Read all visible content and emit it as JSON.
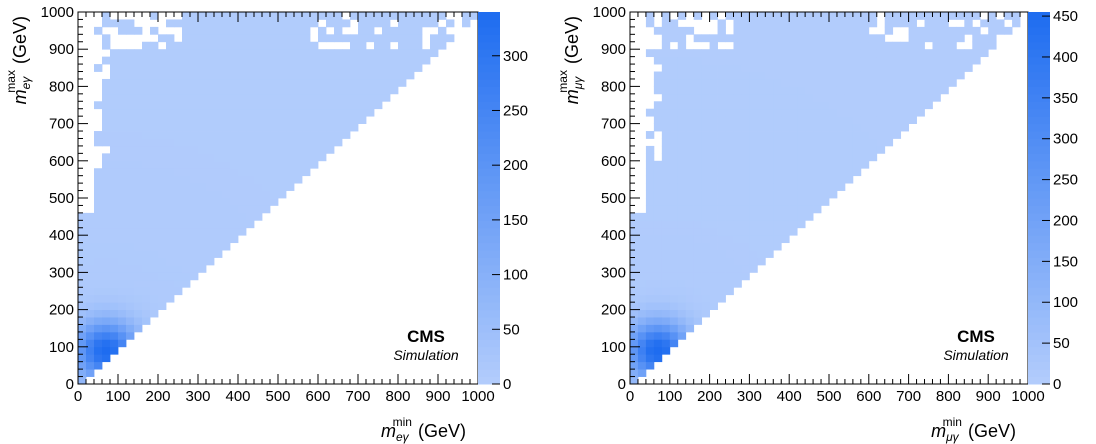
{
  "chart_data": [
    {
      "type": "heatmap",
      "panel": "left",
      "xlabel": {
        "base": "m",
        "sub": "eγ",
        "sup": "min",
        "unit": "(GeV)"
      },
      "ylabel": {
        "base": "m",
        "sub": "eγ",
        "sup": "max",
        "unit": "(GeV)"
      },
      "xlim": [
        0,
        1000
      ],
      "ylim": [
        0,
        1000
      ],
      "x_ticks": [
        "0",
        "100",
        "200",
        "300",
        "400",
        "500",
        "600",
        "700",
        "800",
        "900",
        "1000"
      ],
      "y_ticks": [
        "0",
        "100",
        "200",
        "300",
        "400",
        "500",
        "600",
        "700",
        "800",
        "900",
        "1000"
      ],
      "bin_width": 20,
      "zlim": [
        0,
        340
      ],
      "z_ticks": [
        "0",
        "50",
        "100",
        "150",
        "200",
        "250",
        "300"
      ],
      "peak": {
        "x": 70,
        "y": 90,
        "z": 330
      },
      "cells_nonzero_region": "upper triangle y >= x",
      "label_cms": "CMS",
      "label_sim": "Simulation",
      "colors": {
        "low": "#b3cdfc",
        "high": "#1e6cf0"
      }
    },
    {
      "type": "heatmap",
      "panel": "right",
      "xlabel": {
        "base": "m",
        "sub": "μγ",
        "sup": "min",
        "unit": "(GeV)"
      },
      "ylabel": {
        "base": "m",
        "sub": "μγ",
        "sup": "max",
        "unit": "(GeV)"
      },
      "xlim": [
        0,
        1000
      ],
      "ylim": [
        0,
        1000
      ],
      "x_ticks": [
        "0",
        "100",
        "200",
        "300",
        "400",
        "500",
        "600",
        "700",
        "800",
        "900",
        "1000"
      ],
      "y_ticks": [
        "0",
        "100",
        "200",
        "300",
        "400",
        "500",
        "600",
        "700",
        "800",
        "900",
        "1000"
      ],
      "bin_width": 20,
      "zlim": [
        0,
        455
      ],
      "z_ticks": [
        "0",
        "50",
        "100",
        "150",
        "200",
        "250",
        "300",
        "350",
        "400",
        "450"
      ],
      "peak": {
        "x": 70,
        "y": 90,
        "z": 450
      },
      "cells_nonzero_region": "upper triangle y >= x",
      "label_cms": "CMS",
      "label_sim": "Simulation",
      "colors": {
        "low": "#b3cdfc",
        "high": "#1e6cf0"
      }
    }
  ]
}
